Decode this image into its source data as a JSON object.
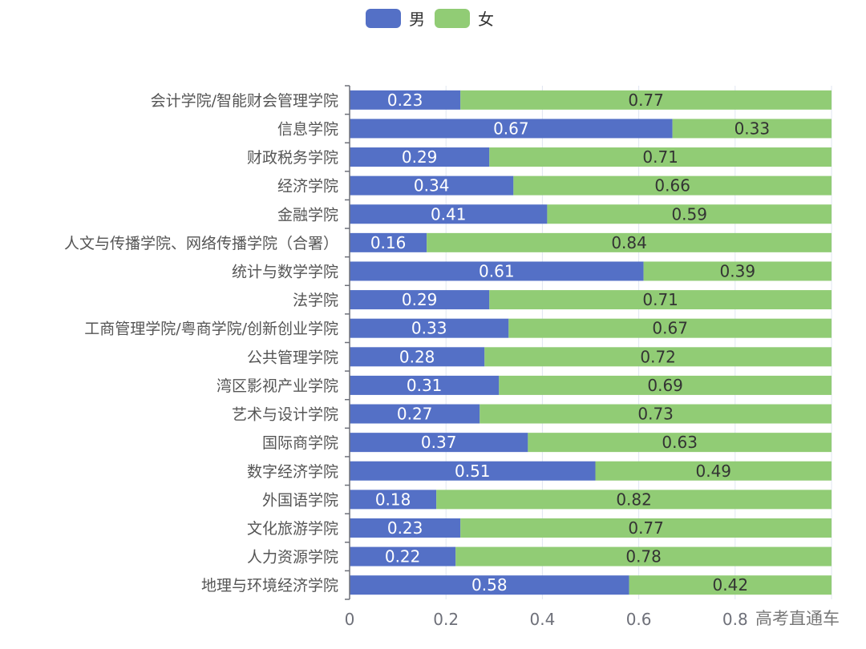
{
  "chart_data": {
    "type": "bar",
    "orientation": "horizontal",
    "stacked": true,
    "categories": [
      "会计学院/智能财会管理学院",
      "信息学院",
      "财政税务学院",
      "经济学院",
      "金融学院",
      "人文与传播学院、网络传播学院（合署）",
      "统计与数学学院",
      "法学院",
      "工商管理学院/粤商学院/创新创业学院",
      "公共管理学院",
      "湾区影视产业学院",
      "艺术与设计学院",
      "国际商学院",
      "数字经济学院",
      "外国语学院",
      "文化旅游学院",
      "人力资源学院",
      "地理与环境经济学院"
    ],
    "series": [
      {
        "name": "男",
        "color": "#5470c6",
        "values": [
          0.23,
          0.67,
          0.29,
          0.34,
          0.41,
          0.16,
          0.61,
          0.29,
          0.33,
          0.28,
          0.31,
          0.27,
          0.37,
          0.51,
          0.18,
          0.23,
          0.22,
          0.58
        ]
      },
      {
        "name": "女",
        "color": "#91cc75",
        "values": [
          0.77,
          0.33,
          0.71,
          0.66,
          0.59,
          0.84,
          0.39,
          0.71,
          0.67,
          0.72,
          0.69,
          0.73,
          0.63,
          0.49,
          0.82,
          0.77,
          0.78,
          0.42
        ]
      }
    ],
    "xlim": [
      0,
      1
    ],
    "xticks": [
      "0",
      "0.2",
      "0.4",
      "0.6",
      "0.8"
    ],
    "grid": true,
    "legend_position": "top"
  },
  "watermark": "高考直通车"
}
